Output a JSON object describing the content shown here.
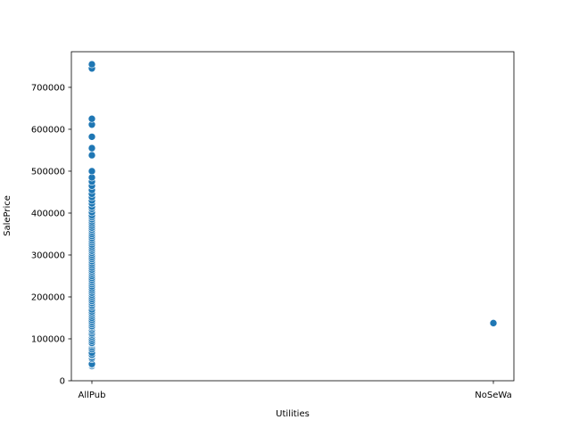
{
  "chart_data": {
    "type": "scatter",
    "title": "",
    "xlabel": "Utilities",
    "ylabel": "SalePrice",
    "categories": [
      "AllPub",
      "NoSeWa"
    ],
    "ylim": [
      0,
      785000
    ],
    "yticks": [
      0,
      100000,
      200000,
      300000,
      400000,
      500000,
      600000,
      700000
    ],
    "ytick_labels": [
      "0",
      "100000",
      "200000",
      "300000",
      "400000",
      "500000",
      "600000",
      "700000"
    ],
    "grid": false,
    "legend": "none",
    "color": "#1f77b4",
    "series": [
      {
        "points": [
          {
            "x": "AllPub",
            "y": 34900
          },
          {
            "x": "AllPub",
            "y": 37900
          },
          {
            "x": "AllPub",
            "y": 40000
          },
          {
            "x": "AllPub",
            "y": 52000
          },
          {
            "x": "AllPub",
            "y": 55000
          },
          {
            "x": "AllPub",
            "y": 60000
          },
          {
            "x": "AllPub",
            "y": 62000
          },
          {
            "x": "AllPub",
            "y": 67000
          },
          {
            "x": "AllPub",
            "y": 75000
          },
          {
            "x": "AllPub",
            "y": 80000
          },
          {
            "x": "AllPub",
            "y": 85000
          },
          {
            "x": "AllPub",
            "y": 88000
          },
          {
            "x": "AllPub",
            "y": 90000
          },
          {
            "x": "AllPub",
            "y": 95000
          },
          {
            "x": "AllPub",
            "y": 100000
          },
          {
            "x": "AllPub",
            "y": 105000
          },
          {
            "x": "AllPub",
            "y": 110000
          },
          {
            "x": "AllPub",
            "y": 113000
          },
          {
            "x": "AllPub",
            "y": 118000
          },
          {
            "x": "AllPub",
            "y": 122000
          },
          {
            "x": "AllPub",
            "y": 127000
          },
          {
            "x": "AllPub",
            "y": 130000
          },
          {
            "x": "AllPub",
            "y": 135000
          },
          {
            "x": "AllPub",
            "y": 140000
          },
          {
            "x": "AllPub",
            "y": 145000
          },
          {
            "x": "AllPub",
            "y": 150000
          },
          {
            "x": "AllPub",
            "y": 155000
          },
          {
            "x": "AllPub",
            "y": 160000
          },
          {
            "x": "AllPub",
            "y": 165000
          },
          {
            "x": "AllPub",
            "y": 170000
          },
          {
            "x": "AllPub",
            "y": 176000
          },
          {
            "x": "AllPub",
            "y": 180000
          },
          {
            "x": "AllPub",
            "y": 185000
          },
          {
            "x": "AllPub",
            "y": 190000
          },
          {
            "x": "AllPub",
            "y": 195000
          },
          {
            "x": "AllPub",
            "y": 200000
          },
          {
            "x": "AllPub",
            "y": 205000
          },
          {
            "x": "AllPub",
            "y": 210000
          },
          {
            "x": "AllPub",
            "y": 215000
          },
          {
            "x": "AllPub",
            "y": 220000
          },
          {
            "x": "AllPub",
            "y": 225000
          },
          {
            "x": "AllPub",
            "y": 230000
          },
          {
            "x": "AllPub",
            "y": 235000
          },
          {
            "x": "AllPub",
            "y": 240000
          },
          {
            "x": "AllPub",
            "y": 245000
          },
          {
            "x": "AllPub",
            "y": 250000
          },
          {
            "x": "AllPub",
            "y": 255000
          },
          {
            "x": "AllPub",
            "y": 260000
          },
          {
            "x": "AllPub",
            "y": 265000
          },
          {
            "x": "AllPub",
            "y": 270000
          },
          {
            "x": "AllPub",
            "y": 275000
          },
          {
            "x": "AllPub",
            "y": 280000
          },
          {
            "x": "AllPub",
            "y": 285000
          },
          {
            "x": "AllPub",
            "y": 290000
          },
          {
            "x": "AllPub",
            "y": 295000
          },
          {
            "x": "AllPub",
            "y": 300000
          },
          {
            "x": "AllPub",
            "y": 305000
          },
          {
            "x": "AllPub",
            "y": 310000
          },
          {
            "x": "AllPub",
            "y": 315000
          },
          {
            "x": "AllPub",
            "y": 320000
          },
          {
            "x": "AllPub",
            "y": 325000
          },
          {
            "x": "AllPub",
            "y": 330000
          },
          {
            "x": "AllPub",
            "y": 335000
          },
          {
            "x": "AllPub",
            "y": 340000
          },
          {
            "x": "AllPub",
            "y": 345000
          },
          {
            "x": "AllPub",
            "y": 350000
          },
          {
            "x": "AllPub",
            "y": 355000
          },
          {
            "x": "AllPub",
            "y": 360000
          },
          {
            "x": "AllPub",
            "y": 365000
          },
          {
            "x": "AllPub",
            "y": 370000
          },
          {
            "x": "AllPub",
            "y": 375000
          },
          {
            "x": "AllPub",
            "y": 380000
          },
          {
            "x": "AllPub",
            "y": 385000
          },
          {
            "x": "AllPub",
            "y": 390000
          },
          {
            "x": "AllPub",
            "y": 395000
          },
          {
            "x": "AllPub",
            "y": 402000
          },
          {
            "x": "AllPub",
            "y": 410000
          },
          {
            "x": "AllPub",
            "y": 415000
          },
          {
            "x": "AllPub",
            "y": 423000
          },
          {
            "x": "AllPub",
            "y": 430000
          },
          {
            "x": "AllPub",
            "y": 438000
          },
          {
            "x": "AllPub",
            "y": 446000
          },
          {
            "x": "AllPub",
            "y": 455000
          },
          {
            "x": "AllPub",
            "y": 465000
          },
          {
            "x": "AllPub",
            "y": 475000
          },
          {
            "x": "AllPub",
            "y": 485000
          },
          {
            "x": "AllPub",
            "y": 500000
          },
          {
            "x": "AllPub",
            "y": 538000
          },
          {
            "x": "AllPub",
            "y": 555000
          },
          {
            "x": "AllPub",
            "y": 582000
          },
          {
            "x": "AllPub",
            "y": 611000
          },
          {
            "x": "AllPub",
            "y": 625000
          },
          {
            "x": "AllPub",
            "y": 745000
          },
          {
            "x": "AllPub",
            "y": 755000
          },
          {
            "x": "NoSeWa",
            "y": 137500
          }
        ]
      }
    ]
  }
}
